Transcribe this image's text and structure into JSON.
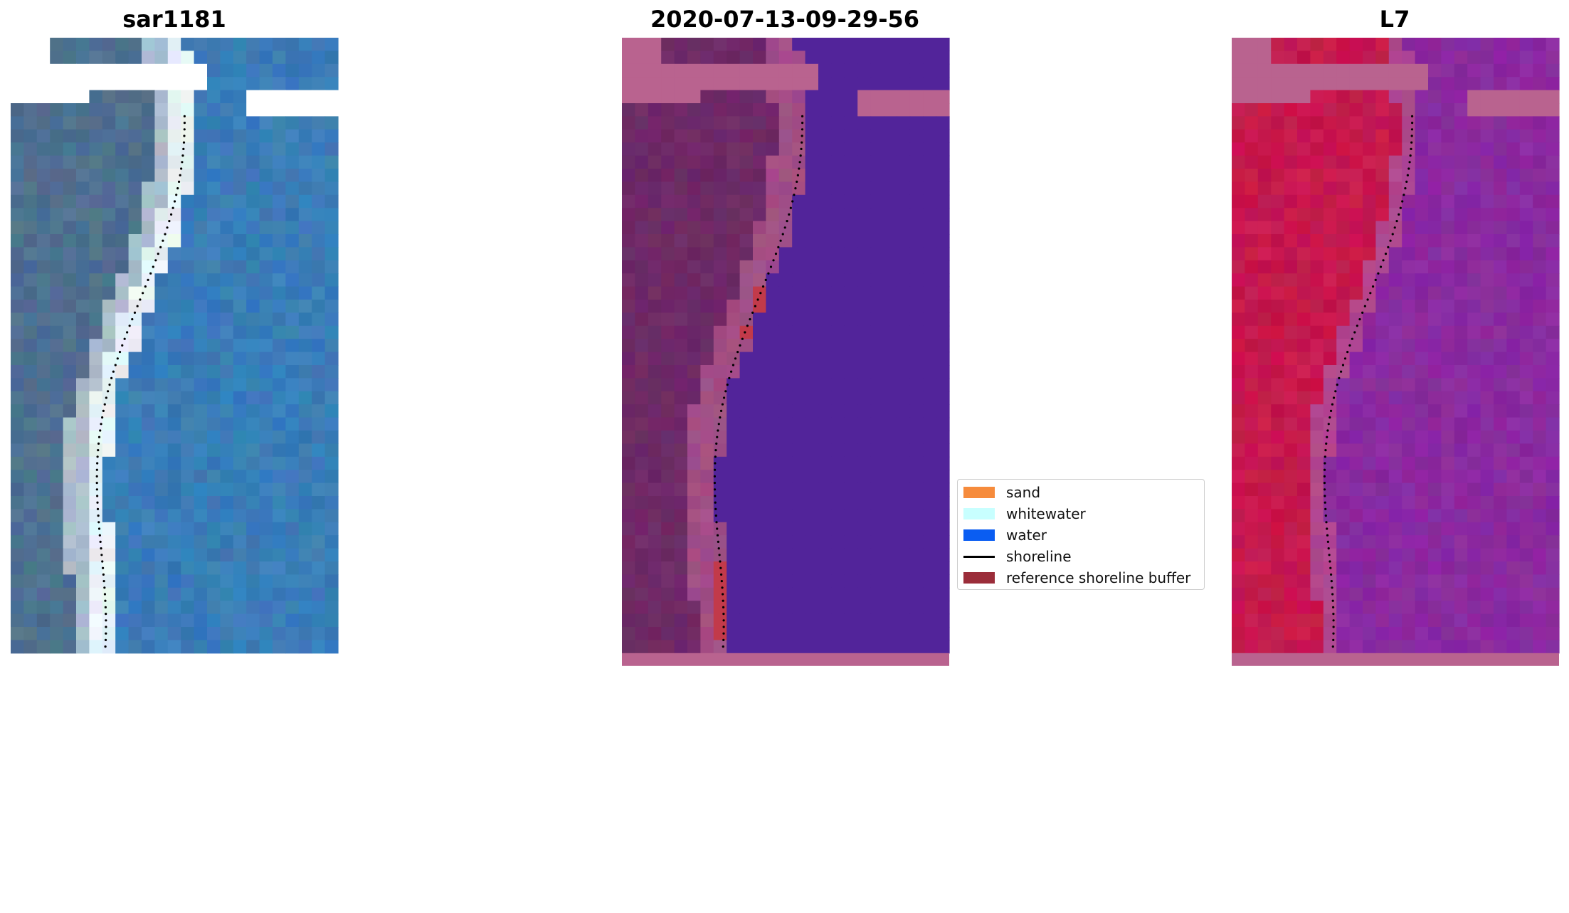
{
  "panels": [
    {
      "title": "sar1181",
      "image": "rgb-composite"
    },
    {
      "title": "2020-07-13-09-29-56",
      "image": "classified-overlay"
    },
    {
      "title": "L7",
      "image": "ndwi-index"
    }
  ],
  "legend": {
    "items": [
      {
        "label": "sand",
        "color": "#f68b3c",
        "kind": "patch"
      },
      {
        "label": "whitewater",
        "color": "#c8ffff",
        "kind": "patch"
      },
      {
        "label": "water",
        "color": "#0a5df2",
        "kind": "patch"
      },
      {
        "label": "shoreline",
        "color": "#000000",
        "kind": "line"
      },
      {
        "label": "reference shoreline buffer",
        "color": "#9b2d3a",
        "kind": "patch"
      }
    ]
  },
  "colors": {
    "rgb_water": "#3a7db8",
    "rgb_land": "#4f7090",
    "rgb_surf": "#e8f2f4",
    "class_water": "#52249a",
    "class_land": "#6e2a66",
    "class_nodata": "#b9638f",
    "class_buffer": "#c23a4a",
    "index_land": "#c6184d",
    "index_water": "#8a2aa0",
    "index_nodata": "#b9638f"
  }
}
